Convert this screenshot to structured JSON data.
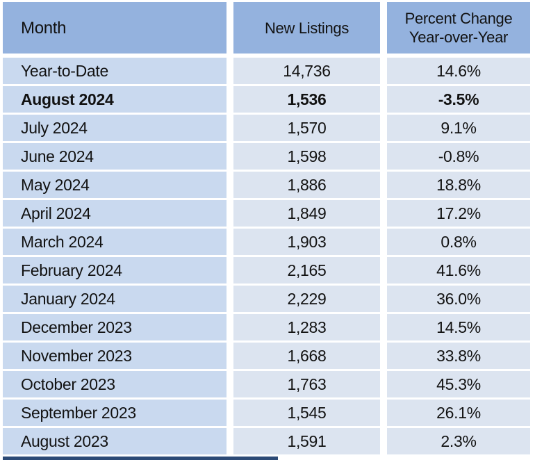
{
  "chart_data": {
    "type": "table",
    "title": "New Listings by Month with Percent Change Year-over-Year",
    "columns": [
      "Month",
      "New Listings",
      "Percent Change\nYear-over-Year"
    ],
    "rows": [
      {
        "month": "Year-to-Date",
        "new_listings": "14,736",
        "percent_change": "14.6%",
        "bold": false
      },
      {
        "month": "August 2024",
        "new_listings": "1,536",
        "percent_change": "-3.5%",
        "bold": true
      },
      {
        "month": "July 2024",
        "new_listings": "1,570",
        "percent_change": "9.1%",
        "bold": false
      },
      {
        "month": "June 2024",
        "new_listings": "1,598",
        "percent_change": "-0.8%",
        "bold": false
      },
      {
        "month": "May 2024",
        "new_listings": "1,886",
        "percent_change": "18.8%",
        "bold": false
      },
      {
        "month": "April 2024",
        "new_listings": "1,849",
        "percent_change": "17.2%",
        "bold": false
      },
      {
        "month": "March 2024",
        "new_listings": "1,903",
        "percent_change": "0.8%",
        "bold": false
      },
      {
        "month": "February 2024",
        "new_listings": "2,165",
        "percent_change": "41.6%",
        "bold": false
      },
      {
        "month": "January 2024",
        "new_listings": "2,229",
        "percent_change": "36.0%",
        "bold": false
      },
      {
        "month": "December 2023",
        "new_listings": "1,283",
        "percent_change": "14.5%",
        "bold": false
      },
      {
        "month": "November 2023",
        "new_listings": "1,668",
        "percent_change": "33.8%",
        "bold": false
      },
      {
        "month": "October 2023",
        "new_listings": "1,763",
        "percent_change": "45.3%",
        "bold": false
      },
      {
        "month": "September 2023",
        "new_listings": "1,545",
        "percent_change": "26.1%",
        "bold": false
      },
      {
        "month": "August 2023",
        "new_listings": "1,591",
        "percent_change": "2.3%",
        "bold": false
      }
    ]
  },
  "colors": {
    "header_bg": "#94B2DE",
    "month_cell_bg": "#C9D9EF",
    "value_cell_bg": "#DCE4F0",
    "bottom_bar": "#2C4A76",
    "text": "#121212"
  }
}
